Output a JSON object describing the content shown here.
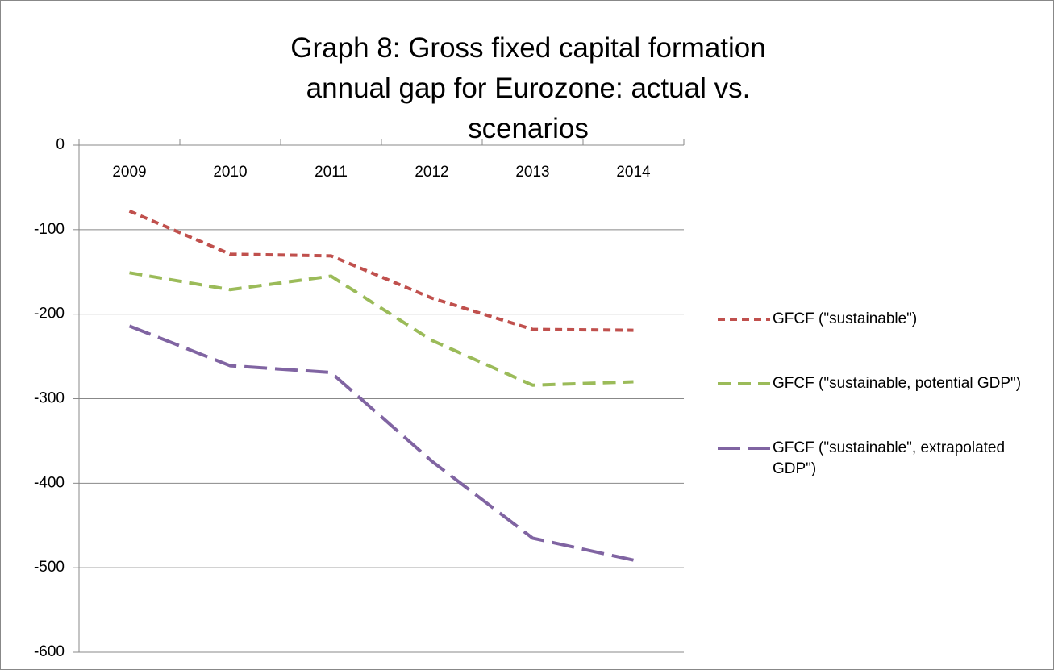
{
  "chart_data": {
    "type": "line",
    "title": "Graph 8: Gross fixed capital formation annual gap for Eurozone: actual vs. scenarios",
    "categories": [
      "2009",
      "2010",
      "2011",
      "2012",
      "2013",
      "2014"
    ],
    "series": [
      {
        "name": "GFCF (\"sustainable\")",
        "color": "#c0504d",
        "dash": "9,6",
        "values": [
          -78,
          -129,
          -131,
          -181,
          -218,
          -219
        ]
      },
      {
        "name": "GFCF (\"sustainable, potential GDP\")",
        "color": "#9bbb59",
        "dash": "16,9",
        "values": [
          -151,
          -171,
          -155,
          -231,
          -284,
          -280
        ]
      },
      {
        "name": "GFCF (\"sustainable\", extrapolated GDP\")",
        "color": "#8064a2",
        "dash": "28,10",
        "values": [
          -214,
          -261,
          -269,
          -374,
          -465,
          -491
        ]
      }
    ],
    "ylim": [
      -600,
      0
    ],
    "yticks": [
      0,
      -100,
      -200,
      -300,
      -400,
      -500,
      -600
    ],
    "grid": true,
    "legend": "right"
  }
}
